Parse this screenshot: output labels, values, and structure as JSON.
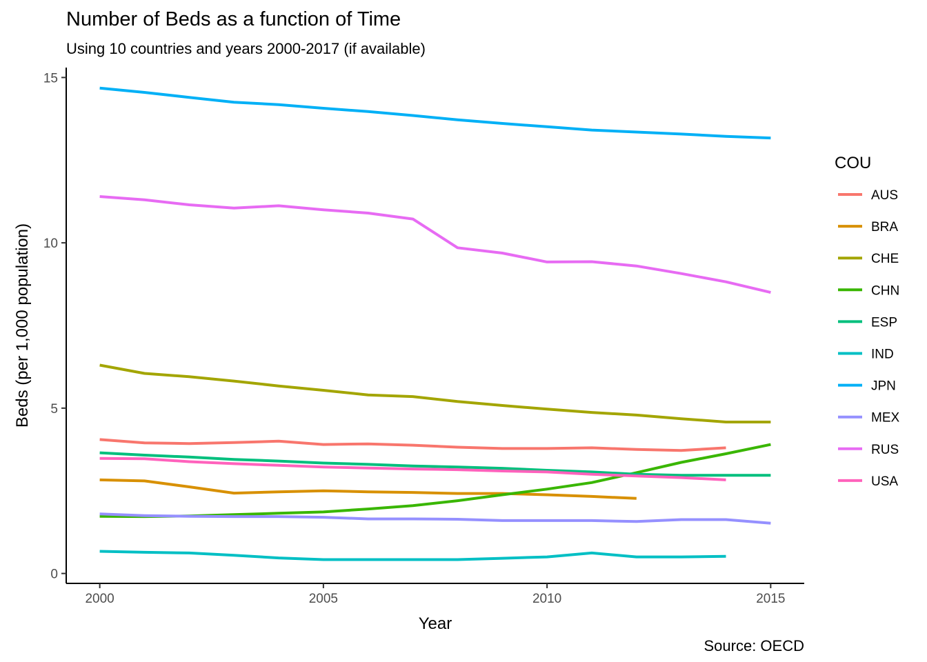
{
  "chart_data": {
    "type": "line",
    "title": "Number of Beds as a function of Time",
    "subtitle": "Using 10 countries and years 2000-2017 (if available)",
    "caption": "Source: OECD",
    "xlabel": "Year",
    "ylabel": "Beds (per 1,000 population)",
    "xlim": [
      1999.25,
      2015.75
    ],
    "ylim": [
      -0.3,
      15.3
    ],
    "x_ticks": [
      2000,
      2005,
      2010,
      2015
    ],
    "y_ticks": [
      0,
      5,
      10,
      15
    ],
    "grid": false,
    "legend": {
      "title": "COU",
      "position": "right"
    },
    "series": [
      {
        "name": "AUS",
        "color": "#F8766D",
        "points": [
          [
            2000,
            4.05
          ],
          [
            2001,
            3.95
          ],
          [
            2002,
            3.93
          ],
          [
            2003,
            3.96
          ],
          [
            2004,
            4.0
          ],
          [
            2005,
            3.9
          ],
          [
            2006,
            3.92
          ],
          [
            2007,
            3.88
          ],
          [
            2008,
            3.82
          ],
          [
            2009,
            3.78
          ],
          [
            2010,
            3.78
          ],
          [
            2011,
            3.8
          ],
          [
            2012,
            3.75
          ],
          [
            2013,
            3.72
          ],
          [
            2014,
            3.8
          ]
        ]
      },
      {
        "name": "BRA",
        "color": "#D89000",
        "points": [
          [
            2000,
            2.83
          ],
          [
            2001,
            2.8
          ],
          [
            2002,
            2.62
          ],
          [
            2003,
            2.43
          ],
          [
            2004,
            2.47
          ],
          [
            2005,
            2.5
          ],
          [
            2006,
            2.47
          ],
          [
            2007,
            2.45
          ],
          [
            2008,
            2.42
          ],
          [
            2009,
            2.42
          ],
          [
            2010,
            2.38
          ],
          [
            2011,
            2.33
          ],
          [
            2012,
            2.27
          ]
        ]
      },
      {
        "name": "CHE",
        "color": "#A3A500",
        "points": [
          [
            2000,
            6.3
          ],
          [
            2001,
            6.05
          ],
          [
            2002,
            5.95
          ],
          [
            2003,
            5.82
          ],
          [
            2004,
            5.67
          ],
          [
            2005,
            5.54
          ],
          [
            2006,
            5.4
          ],
          [
            2007,
            5.35
          ],
          [
            2008,
            5.2
          ],
          [
            2009,
            5.08
          ],
          [
            2010,
            4.97
          ],
          [
            2011,
            4.87
          ],
          [
            2012,
            4.79
          ],
          [
            2013,
            4.68
          ],
          [
            2014,
            4.58
          ],
          [
            2015,
            4.58
          ]
        ]
      },
      {
        "name": "CHN",
        "color": "#39B600",
        "points": [
          [
            2000,
            1.73
          ],
          [
            2001,
            1.72
          ],
          [
            2002,
            1.74
          ],
          [
            2003,
            1.78
          ],
          [
            2004,
            1.82
          ],
          [
            2005,
            1.86
          ],
          [
            2006,
            1.95
          ],
          [
            2007,
            2.05
          ],
          [
            2008,
            2.2
          ],
          [
            2009,
            2.38
          ],
          [
            2010,
            2.55
          ],
          [
            2011,
            2.75
          ],
          [
            2012,
            3.05
          ],
          [
            2013,
            3.36
          ],
          [
            2014,
            3.62
          ],
          [
            2015,
            3.9
          ]
        ]
      },
      {
        "name": "ESP",
        "color": "#00BF7D",
        "points": [
          [
            2000,
            3.65
          ],
          [
            2001,
            3.58
          ],
          [
            2002,
            3.52
          ],
          [
            2003,
            3.45
          ],
          [
            2004,
            3.4
          ],
          [
            2005,
            3.34
          ],
          [
            2006,
            3.3
          ],
          [
            2007,
            3.25
          ],
          [
            2008,
            3.22
          ],
          [
            2009,
            3.18
          ],
          [
            2010,
            3.12
          ],
          [
            2011,
            3.07
          ],
          [
            2012,
            3.0
          ],
          [
            2013,
            2.97
          ],
          [
            2014,
            2.97
          ],
          [
            2015,
            2.97
          ]
        ]
      },
      {
        "name": "IND",
        "color": "#00BFC4",
        "points": [
          [
            2000,
            0.67
          ],
          [
            2001,
            0.64
          ],
          [
            2002,
            0.62
          ],
          [
            2003,
            0.55
          ],
          [
            2004,
            0.47
          ],
          [
            2005,
            0.42
          ],
          [
            2006,
            0.42
          ],
          [
            2007,
            0.42
          ],
          [
            2008,
            0.42
          ],
          [
            2009,
            0.46
          ],
          [
            2010,
            0.5
          ],
          [
            2011,
            0.62
          ],
          [
            2012,
            0.5
          ],
          [
            2013,
            0.5
          ],
          [
            2014,
            0.52
          ]
        ]
      },
      {
        "name": "JPN",
        "color": "#00B0F6",
        "points": [
          [
            2000,
            14.68
          ],
          [
            2001,
            14.55
          ],
          [
            2002,
            14.4
          ],
          [
            2003,
            14.25
          ],
          [
            2004,
            14.18
          ],
          [
            2005,
            14.07
          ],
          [
            2006,
            13.97
          ],
          [
            2007,
            13.85
          ],
          [
            2008,
            13.72
          ],
          [
            2009,
            13.61
          ],
          [
            2010,
            13.51
          ],
          [
            2011,
            13.41
          ],
          [
            2012,
            13.35
          ],
          [
            2013,
            13.29
          ],
          [
            2014,
            13.22
          ],
          [
            2015,
            13.17
          ]
        ]
      },
      {
        "name": "MEX",
        "color": "#9590FF",
        "points": [
          [
            2000,
            1.8
          ],
          [
            2001,
            1.75
          ],
          [
            2002,
            1.73
          ],
          [
            2003,
            1.72
          ],
          [
            2004,
            1.72
          ],
          [
            2005,
            1.7
          ],
          [
            2006,
            1.65
          ],
          [
            2007,
            1.65
          ],
          [
            2008,
            1.64
          ],
          [
            2009,
            1.6
          ],
          [
            2010,
            1.6
          ],
          [
            2011,
            1.6
          ],
          [
            2012,
            1.57
          ],
          [
            2013,
            1.63
          ],
          [
            2014,
            1.63
          ],
          [
            2015,
            1.52
          ]
        ]
      },
      {
        "name": "RUS",
        "color": "#E76BF3",
        "points": [
          [
            2000,
            11.4
          ],
          [
            2001,
            11.3
          ],
          [
            2002,
            11.15
          ],
          [
            2003,
            11.05
          ],
          [
            2004,
            11.12
          ],
          [
            2005,
            11.0
          ],
          [
            2006,
            10.9
          ],
          [
            2007,
            10.72
          ],
          [
            2008,
            9.85
          ],
          [
            2009,
            9.69
          ],
          [
            2010,
            9.42
          ],
          [
            2011,
            9.43
          ],
          [
            2012,
            9.3
          ],
          [
            2013,
            9.07
          ],
          [
            2014,
            8.82
          ],
          [
            2015,
            8.5
          ]
        ]
      },
      {
        "name": "USA",
        "color": "#FF62BC",
        "points": [
          [
            2000,
            3.48
          ],
          [
            2001,
            3.47
          ],
          [
            2002,
            3.38
          ],
          [
            2003,
            3.32
          ],
          [
            2004,
            3.27
          ],
          [
            2005,
            3.22
          ],
          [
            2006,
            3.19
          ],
          [
            2007,
            3.16
          ],
          [
            2008,
            3.14
          ],
          [
            2009,
            3.1
          ],
          [
            2010,
            3.07
          ],
          [
            2011,
            3.0
          ],
          [
            2012,
            2.95
          ],
          [
            2013,
            2.9
          ],
          [
            2014,
            2.83
          ]
        ]
      }
    ]
  }
}
